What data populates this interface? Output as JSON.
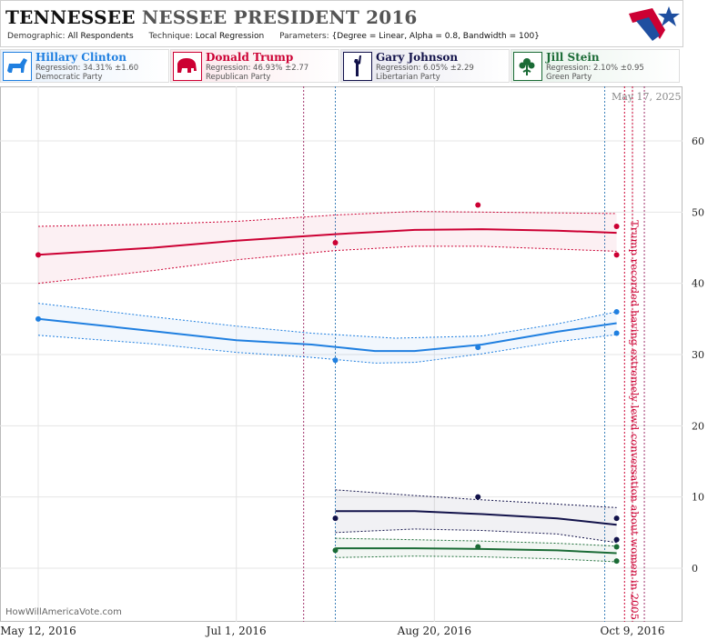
{
  "header": {
    "title_part1": "TENNESSEE",
    "title_part2": "NESSEE PRESIDENT 2016",
    "demographic_label": "Demographic:",
    "demographic_value": "All Respondents",
    "technique_label": "Technique:",
    "technique_value": "Local Regression",
    "parameters_label": "Parameters:",
    "parameters_value": "{Degree = Linear, Alpha = 0.8, Bandwidth = 100}"
  },
  "candidates": [
    {
      "name": "Hillary Clinton",
      "regression": "Regression: 34.31% ±1.60",
      "party": "Democratic Party",
      "color": "#1f7fe0",
      "icon": "donkey-icon"
    },
    {
      "name": "Donald Trump",
      "regression": "Regression: 46.93% ±2.77",
      "party": "Republican Party",
      "color": "#cc0033",
      "icon": "elephant-icon"
    },
    {
      "name": "Gary Johnson",
      "regression": "Regression: 6.05% ±2.29",
      "party": "Libertarian Party",
      "color": "#12124a",
      "icon": "statue-of-liberty-icon"
    },
    {
      "name": "Jill Stein",
      "regression": "Regression: 2.10% ±0.95",
      "party": "Green Party",
      "color": "#1a6b35",
      "icon": "flower-icon"
    }
  ],
  "date_stamp": "May 17, 2025",
  "footer": "HowWillAmericaVote.com",
  "annotation": "Trump recorded having extremely lewd conversation about women in 2005",
  "chart_data": {
    "type": "line",
    "x_ticks": [
      "May 12, 2016",
      "Jul 1, 2016",
      "Aug 20, 2016",
      "Oct 9, 2016"
    ],
    "x_tick_dates": [
      "2016-05-12",
      "2016-07-01",
      "2016-08-20",
      "2016-10-09"
    ],
    "xlim": [
      "2016-05-12",
      "2016-10-09"
    ],
    "ylim": [
      -3,
      66
    ],
    "y_ticks": [
      0,
      10,
      20,
      30,
      40,
      50,
      60
    ],
    "grid": true,
    "annotation_date": "2016-10-07",
    "series": [
      {
        "name": "Hillary Clinton",
        "color": "#1f7fe0",
        "points": [
          [
            "2016-05-12",
            35
          ],
          [
            "2016-07-26",
            29.2
          ],
          [
            "2016-08-31",
            31
          ],
          [
            "2016-10-05",
            36
          ],
          [
            "2016-10-05",
            33
          ]
        ],
        "trend": [
          [
            "2016-05-12",
            35
          ],
          [
            "2016-06-10",
            33.3
          ],
          [
            "2016-07-01",
            32
          ],
          [
            "2016-07-20",
            31.4
          ],
          [
            "2016-08-05",
            30.5
          ],
          [
            "2016-08-15",
            30.5
          ],
          [
            "2016-09-01",
            31.4
          ],
          [
            "2016-09-20",
            33.2
          ],
          [
            "2016-10-05",
            34.4
          ]
        ],
        "upper": [
          [
            "2016-05-12",
            37.2
          ],
          [
            "2016-06-10",
            35.3
          ],
          [
            "2016-07-01",
            34
          ],
          [
            "2016-07-20",
            33
          ],
          [
            "2016-08-10",
            32.3
          ],
          [
            "2016-09-01",
            32.6
          ],
          [
            "2016-09-20",
            34.3
          ],
          [
            "2016-10-05",
            36
          ]
        ],
        "lower": [
          [
            "2016-05-12",
            32.7
          ],
          [
            "2016-06-10",
            31.5
          ],
          [
            "2016-07-01",
            30.3
          ],
          [
            "2016-07-20",
            29.6
          ],
          [
            "2016-08-05",
            28.8
          ],
          [
            "2016-08-15",
            28.9
          ],
          [
            "2016-09-01",
            30.1
          ],
          [
            "2016-09-20",
            31.8
          ],
          [
            "2016-10-05",
            32.8
          ]
        ]
      },
      {
        "name": "Donald Trump",
        "color": "#cc0033",
        "points": [
          [
            "2016-05-12",
            44
          ],
          [
            "2016-07-26",
            45.7
          ],
          [
            "2016-08-31",
            51
          ],
          [
            "2016-10-05",
            48
          ],
          [
            "2016-10-05",
            44
          ]
        ],
        "trend": [
          [
            "2016-05-12",
            44
          ],
          [
            "2016-06-10",
            45
          ],
          [
            "2016-07-01",
            46
          ],
          [
            "2016-07-26",
            46.9
          ],
          [
            "2016-08-15",
            47.5
          ],
          [
            "2016-09-01",
            47.6
          ],
          [
            "2016-09-20",
            47.4
          ],
          [
            "2016-10-05",
            47.1
          ]
        ],
        "upper": [
          [
            "2016-05-12",
            48
          ],
          [
            "2016-06-10",
            48.3
          ],
          [
            "2016-07-01",
            48.7
          ],
          [
            "2016-07-26",
            49.6
          ],
          [
            "2016-08-15",
            50.1
          ],
          [
            "2016-09-01",
            50
          ],
          [
            "2016-10-05",
            49.8
          ]
        ],
        "lower": [
          [
            "2016-05-12",
            40
          ],
          [
            "2016-06-10",
            41.8
          ],
          [
            "2016-07-01",
            43.3
          ],
          [
            "2016-07-26",
            44.6
          ],
          [
            "2016-08-15",
            45.2
          ],
          [
            "2016-09-01",
            45.2
          ],
          [
            "2016-10-05",
            44.5
          ]
        ]
      },
      {
        "name": "Gary Johnson",
        "color": "#12124a",
        "points": [
          [
            "2016-07-26",
            7
          ],
          [
            "2016-08-31",
            10
          ],
          [
            "2016-10-05",
            7
          ],
          [
            "2016-10-05",
            4
          ]
        ],
        "trend": [
          [
            "2016-07-26",
            8
          ],
          [
            "2016-08-15",
            8
          ],
          [
            "2016-09-01",
            7.6
          ],
          [
            "2016-09-20",
            7
          ],
          [
            "2016-10-05",
            6.1
          ]
        ],
        "upper": [
          [
            "2016-07-26",
            11
          ],
          [
            "2016-08-15",
            10.2
          ],
          [
            "2016-09-01",
            9.6
          ],
          [
            "2016-09-20",
            9
          ],
          [
            "2016-10-05",
            8.5
          ]
        ],
        "lower": [
          [
            "2016-07-26",
            5
          ],
          [
            "2016-08-15",
            5.5
          ],
          [
            "2016-09-01",
            5.3
          ],
          [
            "2016-09-20",
            4.8
          ],
          [
            "2016-10-05",
            3.6
          ]
        ]
      },
      {
        "name": "Jill Stein",
        "color": "#1a6b35",
        "points": [
          [
            "2016-07-26",
            2.5
          ],
          [
            "2016-08-31",
            3
          ],
          [
            "2016-10-05",
            3
          ],
          [
            "2016-10-05",
            1
          ]
        ],
        "trend": [
          [
            "2016-07-26",
            2.8
          ],
          [
            "2016-08-15",
            2.8
          ],
          [
            "2016-09-01",
            2.7
          ],
          [
            "2016-09-20",
            2.5
          ],
          [
            "2016-10-05",
            2.1
          ]
        ],
        "upper": [
          [
            "2016-07-26",
            4.2
          ],
          [
            "2016-08-15",
            4
          ],
          [
            "2016-09-01",
            3.8
          ],
          [
            "2016-09-20",
            3.5
          ],
          [
            "2016-10-05",
            3.1
          ]
        ],
        "lower": [
          [
            "2016-07-26",
            1.5
          ],
          [
            "2016-08-15",
            1.7
          ],
          [
            "2016-09-01",
            1.6
          ],
          [
            "2016-09-20",
            1.3
          ],
          [
            "2016-10-05",
            0.9
          ]
        ]
      }
    ],
    "vlines": [
      {
        "date": "2016-07-18",
        "color": "#a0306a",
        "dash": "2,2"
      },
      {
        "date": "2016-07-26",
        "color": "#3a7fb8",
        "dash": "2,2"
      },
      {
        "date": "2016-10-02",
        "color": "#3a7fb8",
        "dash": "2,2"
      },
      {
        "date": "2016-10-07",
        "color": "#cc0033",
        "dash": "2,2"
      },
      {
        "date": "2016-10-09",
        "color": "#cc0033",
        "dash": "2,2"
      },
      {
        "date": "2016-10-12",
        "color": "#a0306a",
        "dash": "2,2"
      }
    ]
  }
}
